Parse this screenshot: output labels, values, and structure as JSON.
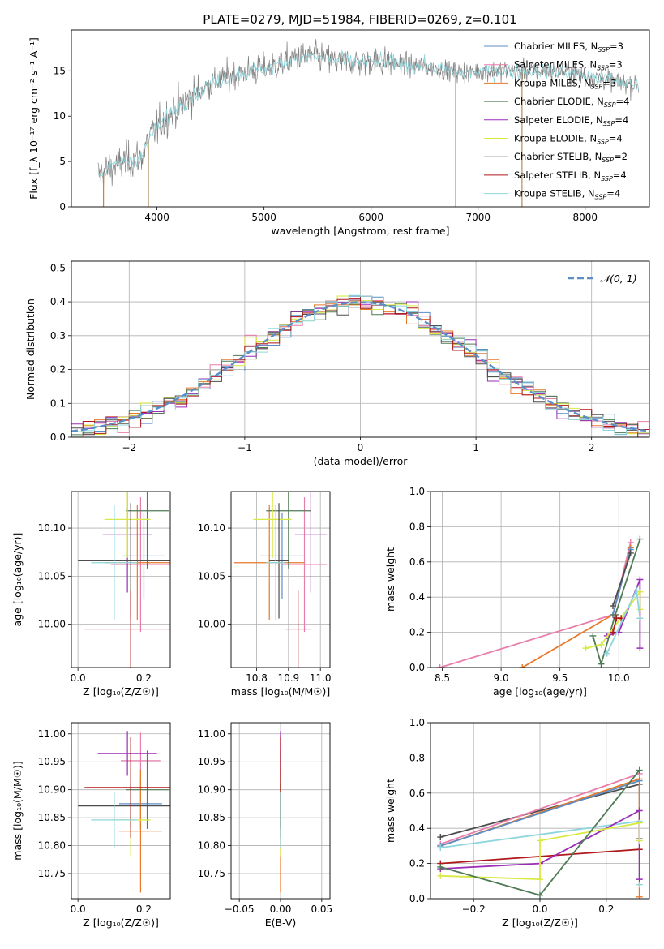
{
  "figure": {
    "title": "PLATE=0279, MJD=51984, FIBERID=0269, z=0.101"
  },
  "colors": {
    "Chabrier MILES": "#5b8ec6",
    "Salpeter MILES": "#e87eac",
    "Kroupa MILES": "#e8782a",
    "Chabrier ELODIE": "#4f7a54",
    "Salpeter ELODIE": "#9b2db8",
    "Kroupa ELODIE": "#d8ea42",
    "Chabrier STELIB": "#4d4d4d",
    "Salpeter STELIB": "#b0171a",
    "Kroupa STELIB": "#8fd6dc",
    "gaussian": "#5b8ec6"
  },
  "chart_data": [
    {
      "type": "line",
      "id": "spectrum",
      "xlabel": "wavelength [Angstrom, rest frame]",
      "ylabel": "Flux [f_λ 10⁻¹⁷ erg cm⁻² s⁻¹ A⁻¹]",
      "xlim": [
        3200,
        8600
      ],
      "ylim": [
        0,
        19.5
      ],
      "xticks": [
        4000,
        5000,
        6000,
        7000,
        8000
      ],
      "yticks": [
        0,
        5,
        10,
        15
      ],
      "grid": false,
      "legend_position": "right",
      "legend": [
        {
          "name": "Chabrier MILES",
          "nssp": "3"
        },
        {
          "name": "Salpeter MILES",
          "nssp": "3"
        },
        {
          "name": "Kroupa MILES",
          "nssp": "3"
        },
        {
          "name": "Chabrier ELODIE",
          "nssp": "4"
        },
        {
          "name": "Salpeter ELODIE",
          "nssp": "4"
        },
        {
          "name": "Kroupa ELODIE",
          "nssp": "4"
        },
        {
          "name": "Chabrier STELIB",
          "nssp": "2"
        },
        {
          "name": "Salpeter STELIB",
          "nssp": "4"
        },
        {
          "name": "Kroupa STELIB",
          "nssp": "4"
        }
      ],
      "data_color": "#808080",
      "continuum": [
        [
          3450,
          3.5
        ],
        [
          3600,
          4.5
        ],
        [
          3700,
          5
        ],
        [
          3850,
          5.5
        ],
        [
          3950,
          8
        ],
        [
          4100,
          10
        ],
        [
          4300,
          12
        ],
        [
          4500,
          13.5
        ],
        [
          4700,
          14.5
        ],
        [
          4900,
          15
        ],
        [
          5100,
          15.5
        ],
        [
          5300,
          16.5
        ],
        [
          5500,
          16.5
        ],
        [
          5700,
          16
        ],
        [
          5900,
          16
        ],
        [
          6100,
          16
        ],
        [
          6300,
          15.7
        ],
        [
          6500,
          15.5
        ],
        [
          6700,
          15
        ],
        [
          6900,
          14.8
        ],
        [
          7100,
          15
        ],
        [
          7300,
          15
        ],
        [
          7500,
          15
        ],
        [
          7700,
          15
        ],
        [
          7900,
          14.7
        ],
        [
          8100,
          14.3
        ],
        [
          8300,
          13.8
        ],
        [
          8500,
          13.4
        ]
      ],
      "dropouts": [
        {
          "x": 3500,
          "color": "#e8782a"
        },
        {
          "x": 3920,
          "color": "#b09060"
        },
        {
          "x": 6790,
          "color": "#b09060"
        },
        {
          "x": 7410,
          "color": "#b09060"
        }
      ]
    },
    {
      "type": "line",
      "id": "residual_hist",
      "xlabel": "(data-model)/error",
      "ylabel": "Normed distribution",
      "xlim": [
        -2.5,
        2.5
      ],
      "ylim": [
        0,
        0.52
      ],
      "xticks": [
        -2,
        -1,
        0,
        1,
        2
      ],
      "yticks": [
        0.0,
        0.1,
        0.2,
        0.3,
        0.4,
        0.5
      ],
      "grid": true,
      "legend_position": "top-right",
      "legend": [
        {
          "name": "𝒩(0, 1)",
          "style": "dashed"
        }
      ],
      "bin_width": 0.1
    },
    {
      "type": "scatter",
      "id": "age_vs_Z",
      "xlabel": "Z [log₁₀(Z/Z☉)]",
      "ylabel": "age  [log₁₀(age/yr)]",
      "xlim": [
        -0.02,
        0.28
      ],
      "ylim": [
        9.955,
        10.138
      ],
      "xticks": [
        0.0,
        0.2
      ],
      "yticks": [
        10.0,
        10.05,
        10.1
      ],
      "grid": true,
      "points": [
        {
          "model": "Chabrier MILES",
          "x": 0.2,
          "y": 10.071,
          "xerr": 0.065,
          "yerr": 0.045
        },
        {
          "model": "Salpeter MILES",
          "x": 0.19,
          "y": 10.062,
          "xerr": 0.09,
          "yerr": 0.07
        },
        {
          "model": "Kroupa MILES",
          "x": 0.18,
          "y": 10.064,
          "xerr": 0.1,
          "yerr": 0.06
        },
        {
          "model": "Chabrier ELODIE",
          "x": 0.21,
          "y": 10.118,
          "xerr": 0.065,
          "yerr": 0.06
        },
        {
          "model": "Salpeter ELODIE",
          "x": 0.15,
          "y": 10.093,
          "xerr": 0.075,
          "yerr": 0.06
        },
        {
          "model": "Kroupa ELODIE",
          "x": 0.15,
          "y": 10.109,
          "xerr": 0.07,
          "yerr": 0.04
        },
        {
          "model": "Chabrier STELIB",
          "x": 0.16,
          "y": 10.066,
          "xerr": 0.16,
          "yerr": 0.06
        },
        {
          "model": "Salpeter STELIB",
          "x": 0.16,
          "y": 9.995,
          "xerr": 0.14,
          "yerr": 0.04
        },
        {
          "model": "Kroupa STELIB",
          "x": 0.11,
          "y": 10.064,
          "xerr": 0.07,
          "yerr": 0.06
        }
      ]
    },
    {
      "type": "scatter",
      "id": "age_vs_mass",
      "xlabel": "mass [log₁₀(M/M☉)]",
      "ylabel": "",
      "xlim": [
        10.72,
        11.03
      ],
      "ylim": [
        9.955,
        10.138
      ],
      "xticks": [
        10.8,
        10.9,
        11.0
      ],
      "yticks": [
        10.0,
        10.05,
        10.1
      ],
      "grid": true,
      "points": [
        {
          "model": "Chabrier MILES",
          "x": 10.88,
          "y": 10.071,
          "xerr": 0.07,
          "yerr": 0.045
        },
        {
          "model": "Salpeter MILES",
          "x": 10.95,
          "y": 10.062,
          "xerr": 0.07,
          "yerr": 0.07
        },
        {
          "model": "Kroupa MILES",
          "x": 10.84,
          "y": 10.064,
          "xerr": 0.11,
          "yerr": 0.06
        },
        {
          "model": "Chabrier ELODIE",
          "x": 10.9,
          "y": 10.118,
          "xerr": 0.07,
          "yerr": 0.06
        },
        {
          "model": "Salpeter ELODIE",
          "x": 10.97,
          "y": 10.093,
          "xerr": 0.05,
          "yerr": 0.06
        },
        {
          "model": "Kroupa ELODIE",
          "x": 10.85,
          "y": 10.109,
          "xerr": 0.06,
          "yerr": 0.04
        },
        {
          "model": "Chabrier STELIB",
          "x": 10.87,
          "y": 10.066,
          "xerr": 0.03,
          "yerr": 0.06
        },
        {
          "model": "Salpeter STELIB",
          "x": 10.93,
          "y": 9.995,
          "xerr": 0.04,
          "yerr": 0.04
        },
        {
          "model": "Kroupa STELIB",
          "x": 10.86,
          "y": 10.064,
          "xerr": 0.03,
          "yerr": 0.06
        }
      ]
    },
    {
      "type": "line",
      "id": "weight_vs_age",
      "xlabel": "age  [log₁₀(age/yr)]",
      "ylabel": "mass weight",
      "xlim": [
        8.4,
        10.26
      ],
      "ylim": [
        0,
        1.0
      ],
      "xticks": [
        8.5,
        9.0,
        9.5,
        10.0
      ],
      "yticks": [
        0.0,
        0.2,
        0.4,
        0.6,
        0.8,
        1.0
      ],
      "grid": true,
      "series": [
        {
          "model": "Salpeter MILES",
          "x": [
            8.48,
            9.95,
            10.1
          ],
          "y": [
            0.0,
            0.3,
            0.71
          ]
        },
        {
          "model": "Kroupa MILES",
          "x": [
            9.18,
            9.95,
            10.1
          ],
          "y": [
            0.0,
            0.3,
            0.68
          ]
        },
        {
          "model": "Chabrier MILES",
          "x": [
            9.95,
            10.1
          ],
          "y": [
            0.3,
            0.67
          ]
        },
        {
          "model": "Chabrier ELODIE",
          "x": [
            9.78,
            9.85,
            9.97,
            10.18
          ],
          "y": [
            0.18,
            0.02,
            0.3,
            0.73
          ]
        },
        {
          "model": "Salpeter ELODIE",
          "x": [
            9.9,
            10.0,
            10.18,
            10.18
          ],
          "y": [
            0.18,
            0.2,
            0.5,
            0.11
          ]
        },
        {
          "model": "Kroupa ELODIE",
          "x": [
            9.72,
            9.85,
            10.18,
            10.18
          ],
          "y": [
            0.11,
            0.13,
            0.43,
            0.33
          ]
        },
        {
          "model": "Chabrier STELIB",
          "x": [
            9.95,
            10.1
          ],
          "y": [
            0.35,
            0.65
          ]
        },
        {
          "model": "Salpeter STELIB",
          "x": [
            9.95,
            9.98,
            10.02
          ],
          "y": [
            0.2,
            0.28,
            0.28
          ]
        },
        {
          "model": "Kroupa STELIB",
          "x": [
            9.9,
            10.15,
            10.18
          ],
          "y": [
            0.08,
            0.44,
            0.28
          ]
        }
      ]
    },
    {
      "type": "scatter",
      "id": "mass_vs_Z",
      "xlabel": "Z [log₁₀(Z/Z☉)]",
      "ylabel": "mass [log₁₀(M/M☉)]",
      "xlim": [
        -0.02,
        0.28
      ],
      "ylim": [
        10.705,
        11.02
      ],
      "xticks": [
        0.0,
        0.2
      ],
      "yticks": [
        10.75,
        10.8,
        10.85,
        10.9,
        10.95,
        11.0
      ],
      "grid": true,
      "points": [
        {
          "model": "Chabrier MILES",
          "x": 0.19,
          "y": 10.875,
          "xerr": 0.065,
          "yerr": 0.045
        },
        {
          "model": "Salpeter MILES",
          "x": 0.19,
          "y": 10.952,
          "xerr": 0.06,
          "yerr": 0.05
        },
        {
          "model": "Kroupa MILES",
          "x": 0.19,
          "y": 10.826,
          "xerr": 0.065,
          "yerr": 0.11
        },
        {
          "model": "Chabrier ELODIE",
          "x": 0.21,
          "y": 10.9,
          "xerr": 0.065,
          "yerr": 0.07
        },
        {
          "model": "Salpeter ELODIE",
          "x": 0.15,
          "y": 10.965,
          "xerr": 0.09,
          "yerr": 0.04
        },
        {
          "model": "Kroupa ELODIE",
          "x": 0.16,
          "y": 10.846,
          "xerr": 0.06,
          "yerr": 0.065
        },
        {
          "model": "Chabrier STELIB",
          "x": 0.16,
          "y": 10.871,
          "xerr": 0.16,
          "yerr": 0.04
        },
        {
          "model": "Salpeter STELIB",
          "x": 0.16,
          "y": 10.904,
          "xerr": 0.14,
          "yerr": 0.09
        },
        {
          "model": "Kroupa STELIB",
          "x": 0.11,
          "y": 10.846,
          "xerr": 0.07,
          "yerr": 0.05
        }
      ]
    },
    {
      "type": "scatter",
      "id": "mass_vs_EBV",
      "xlabel": "E(B-V)",
      "ylabel": "",
      "xlim": [
        -0.06,
        0.06
      ],
      "ylim": [
        10.705,
        11.02
      ],
      "xticks": [
        -0.05,
        0.0,
        0.05
      ],
      "yticks": [
        10.75,
        10.8,
        10.85,
        10.9,
        10.95,
        11.0
      ],
      "grid": true,
      "points": [
        {
          "model": "Chabrier MILES",
          "x": 0.0,
          "y": 10.875,
          "xerr": 0.0,
          "yerr": 0.045
        },
        {
          "model": "Salpeter MILES",
          "x": 0.0,
          "y": 10.952,
          "xerr": 0.0,
          "yerr": 0.05
        },
        {
          "model": "Kroupa MILES",
          "x": 0.0,
          "y": 10.826,
          "xerr": 0.0,
          "yerr": 0.11
        },
        {
          "model": "Chabrier ELODIE",
          "x": 0.0,
          "y": 10.9,
          "xerr": 0.0,
          "yerr": 0.07
        },
        {
          "model": "Salpeter ELODIE",
          "x": 0.0,
          "y": 10.965,
          "xerr": 0.0,
          "yerr": 0.04
        },
        {
          "model": "Kroupa ELODIE",
          "x": 0.0,
          "y": 10.846,
          "xerr": 0.0,
          "yerr": 0.065
        },
        {
          "model": "Chabrier STELIB",
          "x": 0.0,
          "y": 10.871,
          "xerr": 0.0,
          "yerr": 0.04
        },
        {
          "model": "Salpeter STELIB",
          "x": 0.0,
          "y": 10.904,
          "xerr": 0.0,
          "yerr": 0.09
        },
        {
          "model": "Kroupa STELIB",
          "x": 0.0,
          "y": 10.846,
          "xerr": 0.0,
          "yerr": 0.05
        }
      ]
    },
    {
      "type": "line",
      "id": "weight_vs_Z",
      "xlabel": "Z [log₁₀(Z/Z☉)]",
      "ylabel": "mass weight",
      "xlim": [
        -0.33,
        0.33
      ],
      "ylim": [
        0,
        1.0
      ],
      "xticks": [
        -0.2,
        0.0,
        0.2
      ],
      "yticks": [
        0.0,
        0.2,
        0.4,
        0.6,
        0.8,
        1.0
      ],
      "grid": true,
      "series": [
        {
          "model": "Chabrier STELIB",
          "x": [
            -0.3,
            0.3,
            0.3
          ],
          "y": [
            0.35,
            0.65,
            0.34
          ]
        },
        {
          "model": "Kroupa MILES",
          "x": [
            -0.3,
            0.3,
            0.3
          ],
          "y": [
            0.3,
            0.68,
            0.01
          ]
        },
        {
          "model": "Salpeter MILES",
          "x": [
            -0.3,
            0.3
          ],
          "y": [
            0.31,
            0.71
          ]
        },
        {
          "model": "Chabrier MILES",
          "x": [
            -0.3,
            0.3
          ],
          "y": [
            0.3,
            0.67
          ]
        },
        {
          "model": "Kroupa STELIB",
          "x": [
            -0.3,
            0.3,
            0.3
          ],
          "y": [
            0.29,
            0.44,
            0.08
          ]
        },
        {
          "model": "Salpeter STELIB",
          "x": [
            -0.3,
            0.3
          ],
          "y": [
            0.2,
            0.28
          ]
        },
        {
          "model": "Salpeter ELODIE",
          "x": [
            -0.3,
            0.0,
            0.3,
            0.3
          ],
          "y": [
            0.17,
            0.2,
            0.5,
            0.11
          ]
        },
        {
          "model": "Kroupa ELODIE",
          "x": [
            -0.3,
            0.0,
            0.0,
            0.3,
            0.3
          ],
          "y": [
            0.13,
            0.11,
            0.33,
            0.43,
            0.33
          ]
        },
        {
          "model": "Chabrier ELODIE",
          "x": [
            -0.3,
            0.0,
            0.3
          ],
          "y": [
            0.18,
            0.02,
            0.73
          ]
        }
      ]
    }
  ]
}
